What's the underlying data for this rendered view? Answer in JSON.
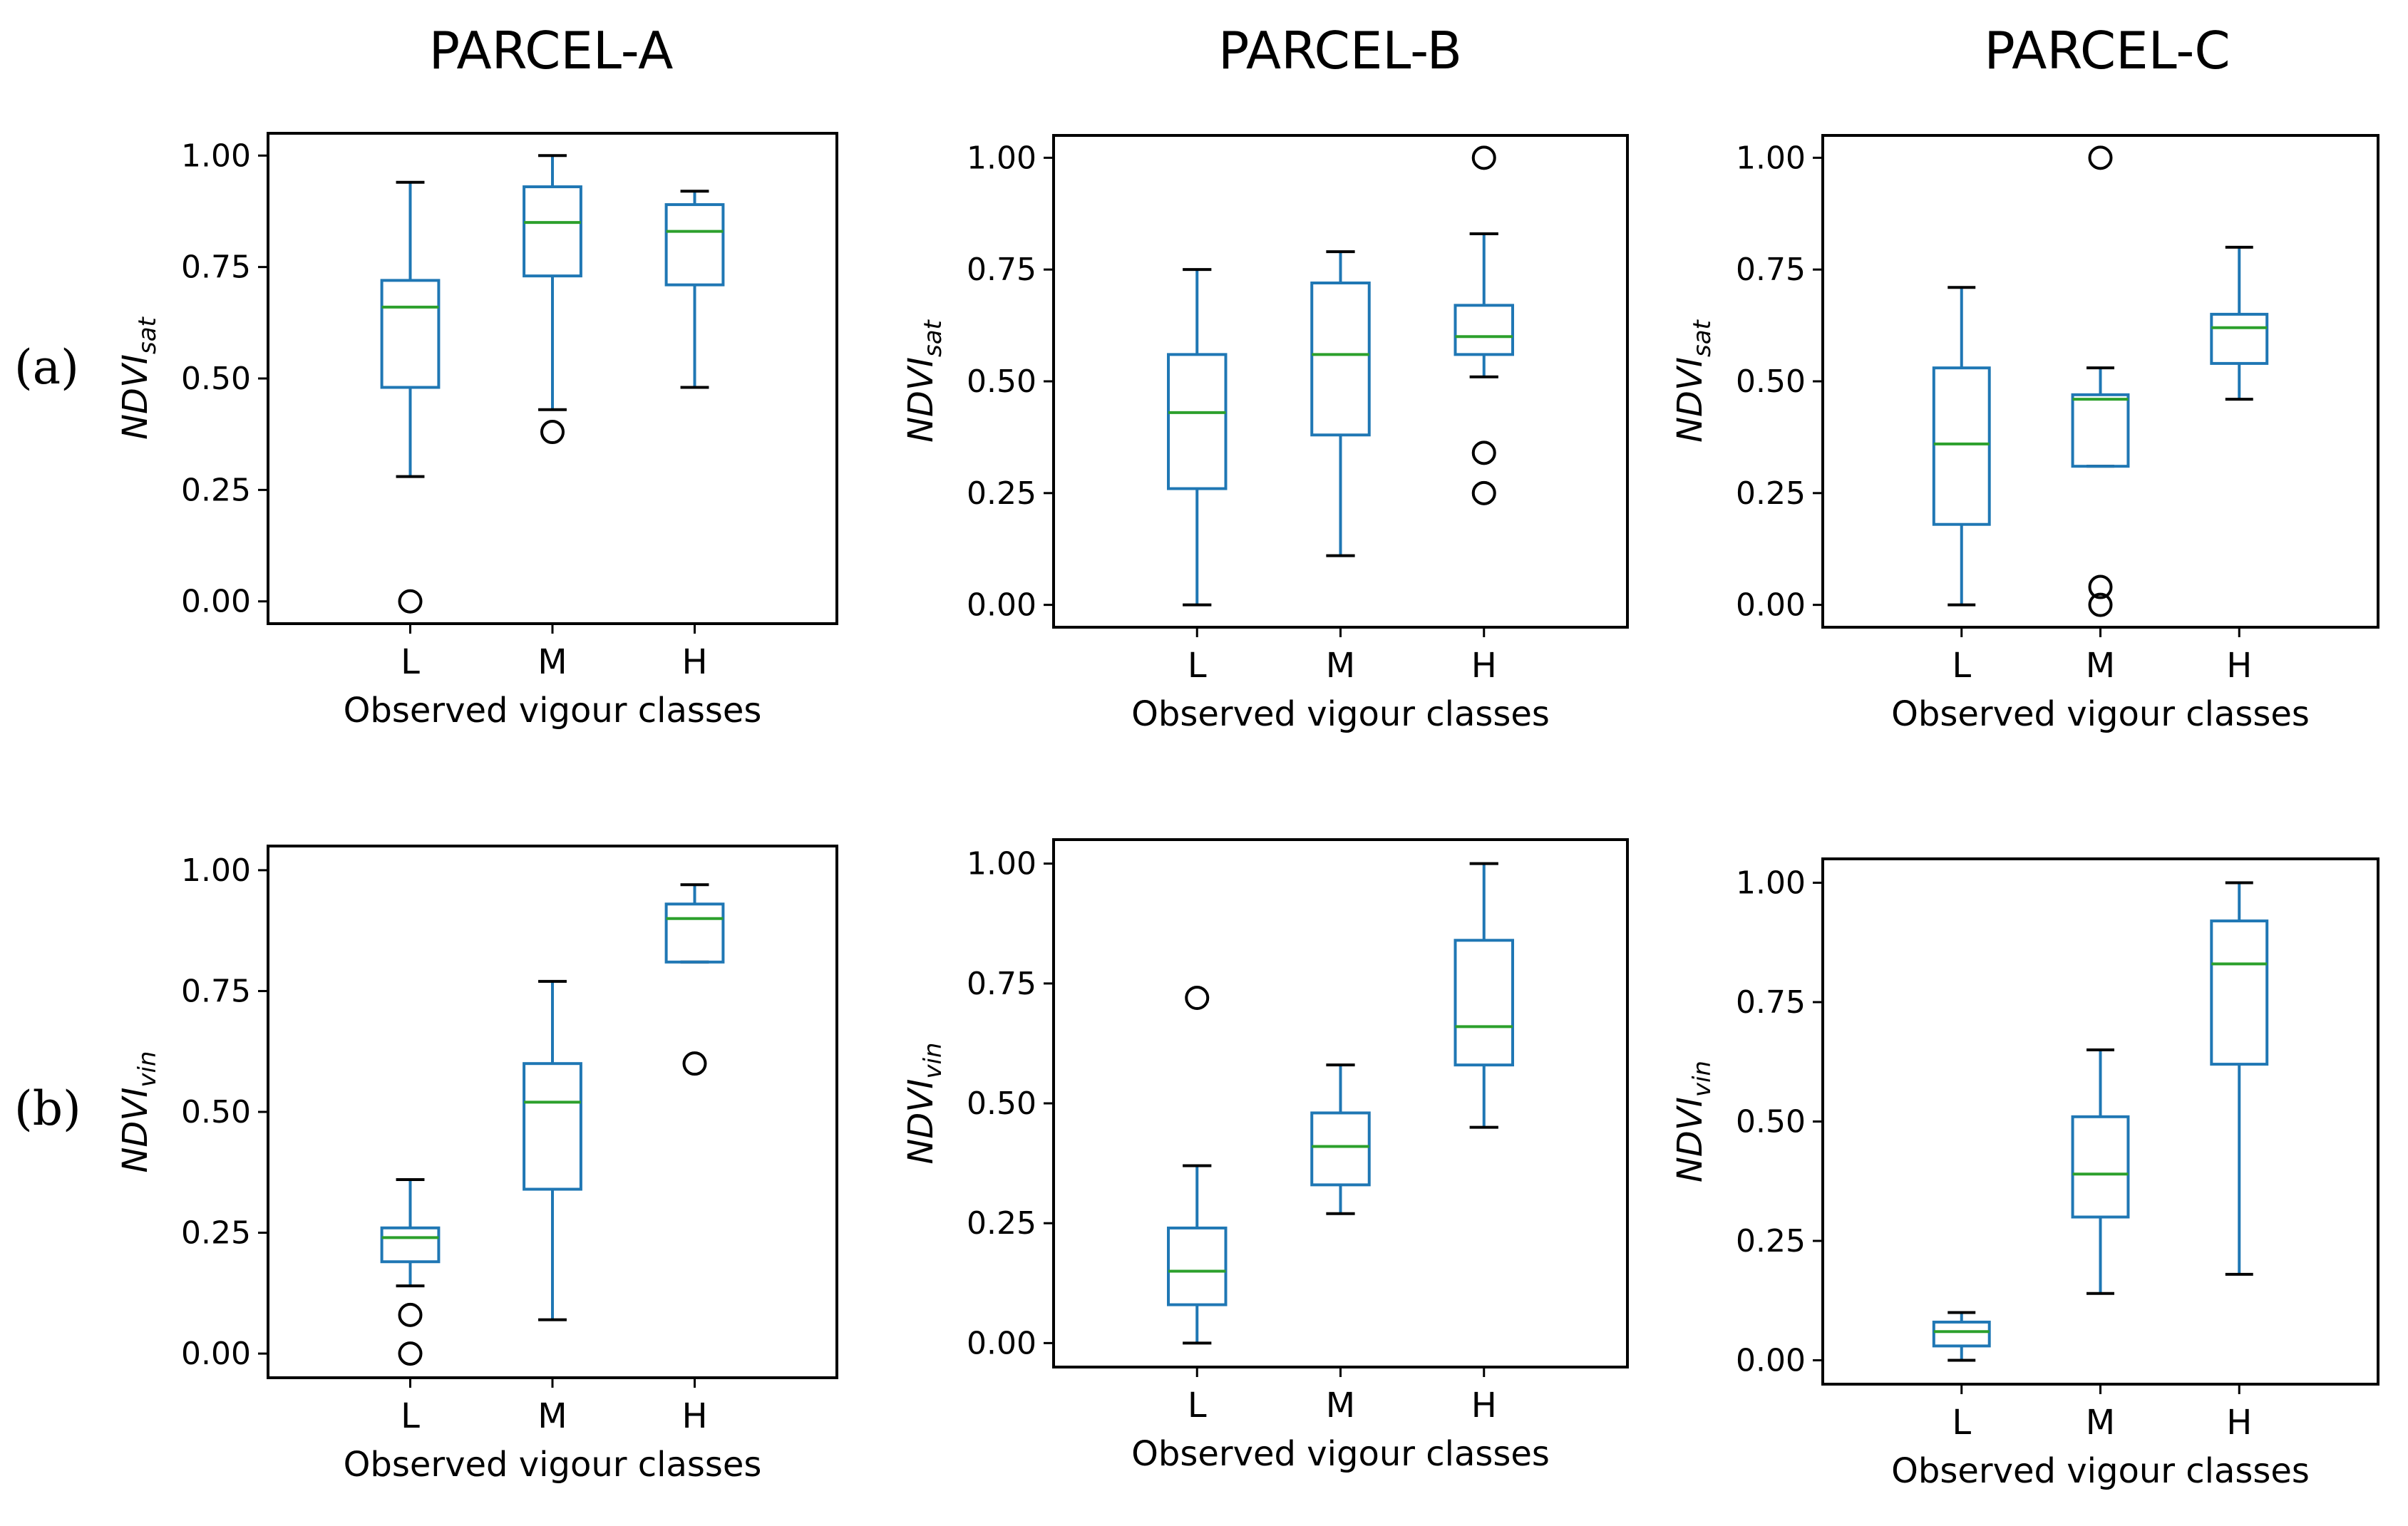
{
  "figure": {
    "columns": [
      "PARCEL-A",
      "PARCEL-B",
      "PARCEL-C"
    ],
    "rows": [
      "(a)",
      "(b)"
    ],
    "colors": {
      "box": "#1f77b4",
      "median": "#2ca02c",
      "flier": "#000000",
      "cap": "#000000"
    }
  },
  "chart_data": [
    {
      "type": "box",
      "row": 0,
      "col": 0,
      "title": "PARCEL-A",
      "ylabel_main": "NDVI",
      "ylabel_sub": "sat",
      "xlabel": "Observed vigour classes",
      "categories": [
        "L",
        "M",
        "H"
      ],
      "ylim": [
        -0.05,
        1.05
      ],
      "yticks": [
        "0.00",
        "0.25",
        "0.50",
        "0.75",
        "1.00"
      ],
      "boxes": [
        {
          "whislo": 0.28,
          "q1": 0.48,
          "med": 0.66,
          "q3": 0.72,
          "whishi": 0.94,
          "fliers": [
            0.0
          ]
        },
        {
          "whislo": 0.43,
          "q1": 0.73,
          "med": 0.85,
          "q3": 0.93,
          "whishi": 1.0,
          "fliers": [
            0.38
          ]
        },
        {
          "whislo": 0.48,
          "q1": 0.71,
          "med": 0.83,
          "q3": 0.89,
          "whishi": 0.92,
          "fliers": []
        }
      ]
    },
    {
      "type": "box",
      "row": 0,
      "col": 1,
      "title": "PARCEL-B",
      "ylabel_main": "NDVI",
      "ylabel_sub": "sat",
      "xlabel": "Observed vigour classes",
      "categories": [
        "L",
        "M",
        "H"
      ],
      "ylim": [
        -0.05,
        1.05
      ],
      "yticks": [
        "0.00",
        "0.25",
        "0.50",
        "0.75",
        "1.00"
      ],
      "boxes": [
        {
          "whislo": 0.0,
          "q1": 0.26,
          "med": 0.43,
          "q3": 0.56,
          "whishi": 0.75,
          "fliers": []
        },
        {
          "whislo": 0.11,
          "q1": 0.38,
          "med": 0.56,
          "q3": 0.72,
          "whishi": 0.79,
          "fliers": []
        },
        {
          "whislo": 0.51,
          "q1": 0.56,
          "med": 0.6,
          "q3": 0.67,
          "whishi": 0.83,
          "fliers": [
            1.0,
            0.34,
            0.25
          ]
        }
      ]
    },
    {
      "type": "box",
      "row": 0,
      "col": 2,
      "title": "PARCEL-C",
      "ylabel_main": "NDVI",
      "ylabel_sub": "sat",
      "xlabel": "Observed vigour classes",
      "categories": [
        "L",
        "M",
        "H"
      ],
      "ylim": [
        -0.05,
        1.05
      ],
      "yticks": [
        "0.00",
        "0.25",
        "0.50",
        "0.75",
        "1.00"
      ],
      "boxes": [
        {
          "whislo": 0.0,
          "q1": 0.18,
          "med": 0.36,
          "q3": 0.53,
          "whishi": 0.71,
          "fliers": []
        },
        {
          "whislo": 0.31,
          "q1": 0.31,
          "med": 0.46,
          "q3": 0.47,
          "whishi": 0.53,
          "fliers": [
            1.0,
            0.04,
            0.0
          ]
        },
        {
          "whislo": 0.46,
          "q1": 0.54,
          "med": 0.62,
          "q3": 0.65,
          "whishi": 0.8,
          "fliers": []
        }
      ]
    },
    {
      "type": "box",
      "row": 1,
      "col": 0,
      "title": "",
      "ylabel_main": "NDVI",
      "ylabel_sub": "vin",
      "xlabel": "Observed vigour classes",
      "categories": [
        "L",
        "M",
        "H"
      ],
      "ylim": [
        -0.05,
        1.05
      ],
      "yticks": [
        "0.00",
        "0.25",
        "0.50",
        "0.75",
        "1.00"
      ],
      "boxes": [
        {
          "whislo": 0.14,
          "q1": 0.19,
          "med": 0.24,
          "q3": 0.26,
          "whishi": 0.36,
          "fliers": [
            0.08,
            0.0
          ]
        },
        {
          "whislo": 0.07,
          "q1": 0.34,
          "med": 0.52,
          "q3": 0.6,
          "whishi": 0.77,
          "fliers": []
        },
        {
          "whislo": 0.81,
          "q1": 0.81,
          "med": 0.9,
          "q3": 0.93,
          "whishi": 0.97,
          "fliers": [
            0.6
          ]
        }
      ]
    },
    {
      "type": "box",
      "row": 1,
      "col": 1,
      "title": "",
      "ylabel_main": "NDVI",
      "ylabel_sub": "vin",
      "xlabel": "Observed vigour classes",
      "categories": [
        "L",
        "M",
        "H"
      ],
      "ylim": [
        -0.05,
        1.05
      ],
      "yticks": [
        "0.00",
        "0.25",
        "0.50",
        "0.75",
        "1.00"
      ],
      "boxes": [
        {
          "whislo": 0.0,
          "q1": 0.08,
          "med": 0.15,
          "q3": 0.24,
          "whishi": 0.37,
          "fliers": [
            0.72
          ]
        },
        {
          "whislo": 0.27,
          "q1": 0.33,
          "med": 0.41,
          "q3": 0.48,
          "whishi": 0.58,
          "fliers": []
        },
        {
          "whislo": 0.45,
          "q1": 0.58,
          "med": 0.66,
          "q3": 0.84,
          "whishi": 1.0,
          "fliers": []
        }
      ]
    },
    {
      "type": "box",
      "row": 1,
      "col": 2,
      "title": "",
      "ylabel_main": "NDVI",
      "ylabel_sub": "vin",
      "xlabel": "Observed vigour classes",
      "categories": [
        "L",
        "M",
        "H"
      ],
      "ylim": [
        -0.05,
        1.05
      ],
      "yticks": [
        "0.00",
        "0.25",
        "0.50",
        "0.75",
        "1.00"
      ],
      "boxes": [
        {
          "whislo": 0.0,
          "q1": 0.03,
          "med": 0.06,
          "q3": 0.08,
          "whishi": 0.1,
          "fliers": []
        },
        {
          "whislo": 0.14,
          "q1": 0.3,
          "med": 0.39,
          "q3": 0.51,
          "whishi": 0.65,
          "fliers": []
        },
        {
          "whislo": 0.18,
          "q1": 0.62,
          "med": 0.83,
          "q3": 0.92,
          "whishi": 1.0,
          "fliers": []
        }
      ]
    }
  ]
}
